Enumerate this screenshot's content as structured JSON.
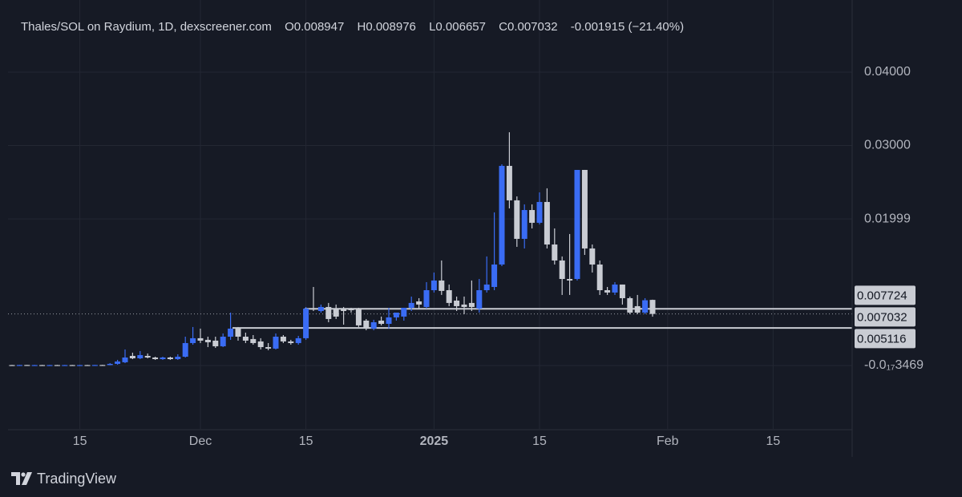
{
  "chart_data": {
    "type": "candlestick",
    "title": "Thales/SOL on Raydium, 1D, dexscreener.com",
    "ohlc_labels": [
      "O0.008947",
      "H0.008976",
      "L0.006657",
      "C0.007032"
    ],
    "change": "-0.001915 (−21.40%)",
    "categories": [
      null,
      null,
      null,
      null,
      null,
      null,
      null,
      null,
      null,
      "15",
      null,
      null,
      null,
      null,
      null,
      null,
      null,
      null,
      null,
      null,
      null,
      null,
      null,
      null,
      null,
      "Dec",
      null,
      null,
      null,
      null,
      null,
      null,
      null,
      null,
      null,
      null,
      null,
      null,
      null,
      "15",
      null,
      null,
      null,
      null,
      null,
      null,
      null,
      null,
      null,
      null,
      null,
      null,
      null,
      null,
      null,
      null,
      "2025",
      null,
      null,
      null,
      null,
      null,
      null,
      null,
      null,
      null,
      null,
      null,
      null,
      null,
      "15",
      null,
      null,
      null,
      null,
      null,
      null,
      null,
      null,
      null,
      null,
      null,
      null,
      null,
      null,
      null,
      null,
      "Feb",
      null,
      null,
      null,
      null,
      null,
      null,
      null,
      null,
      null,
      null,
      null,
      null,
      null,
      "15",
      null,
      null,
      null,
      null,
      null,
      null,
      null,
      null,
      null,
      null
    ],
    "open": [
      6e-05,
      5e-05,
      7e-05,
      5e-05,
      6e-05,
      5e-05,
      6e-05,
      5e-05,
      6e-05,
      5e-05,
      6e-05,
      5e-05,
      7e-05,
      6e-05,
      0.00022,
      0.00044,
      0.00131,
      0.00098,
      0.00131,
      0.00109,
      0.00087,
      0.00109,
      0.00087,
      0.0012,
      0.00306,
      0.00372,
      0.0035,
      0.00339,
      0.00262,
      0.00393,
      0.00503,
      0.00393,
      0.00361,
      0.00328,
      0.00251,
      0.0023,
      0.00393,
      0.00328,
      0.00306,
      0.00372,
      0.00776,
      0.00743,
      0.00798,
      0.00776,
      0.00776,
      0.00776,
      0.00765,
      0.00612,
      0.00503,
      0.00612,
      0.00568,
      0.00656,
      0.00667,
      0.00787,
      0.00874,
      0.00798,
      0.01027,
      0.01159,
      0.01027,
      0.00885,
      0.00831,
      0.00853,
      0.00776,
      0.01027,
      0.01071,
      0.01377,
      0.02722,
      0.02252,
      0.01727,
      0.0212,
      0.01946,
      0.0223,
      0.0165,
      0.01432,
      0.0118,
      0.0118,
      0.02667,
      0.01596,
      0.01377,
      0.01027,
      0.00995,
      0.01104,
      0.00918,
      0.00809,
      0.00721,
      0.008947,
      null,
      null,
      null,
      null,
      null,
      null,
      null,
      null,
      null,
      null,
      null,
      null,
      null,
      null,
      null,
      null,
      null,
      null,
      null,
      null,
      null,
      null,
      null,
      null,
      null,
      null
    ],
    "high": [
      8e-05,
      8e-05,
      8e-05,
      8e-05,
      8e-05,
      8e-05,
      8e-05,
      8e-05,
      8e-05,
      8e-05,
      8e-05,
      8e-05,
      9e-05,
      0.00033,
      0.00077,
      0.00219,
      0.00175,
      0.00197,
      0.00164,
      0.0012,
      0.0012,
      0.0012,
      0.00153,
      0.00393,
      0.00525,
      0.00503,
      0.00393,
      0.00393,
      0.00437,
      0.00721,
      0.00525,
      0.00448,
      0.00415,
      0.00372,
      0.00306,
      0.00437,
      0.00415,
      0.0035,
      0.00404,
      0.00798,
      0.01071,
      0.00831,
      0.00853,
      0.00831,
      0.00798,
      0.00787,
      0.00787,
      0.00634,
      0.00623,
      0.00667,
      0.00787,
      0.00721,
      0.00787,
      0.0094,
      0.00918,
      0.01137,
      0.01268,
      0.01432,
      0.01104,
      0.0094,
      0.0094,
      0.01159,
      0.0118,
      0.01487,
      0.02088,
      0.02743,
      0.03181,
      0.02306,
      0.02197,
      0.02197,
      0.02361,
      0.02416,
      0.01869,
      0.01487,
      0.01793,
      0.02667,
      0.02667,
      0.0165,
      0.01432,
      0.01071,
      0.01137,
      0.01104,
      0.0094,
      0.00962,
      0.00918,
      0.008976,
      null,
      null,
      null,
      null,
      null,
      null,
      null,
      null,
      null,
      null,
      null,
      null,
      null,
      null,
      null,
      null,
      null,
      null,
      null,
      null,
      null,
      null,
      null,
      null,
      null,
      null
    ],
    "low": [
      4e-05,
      4e-05,
      4e-05,
      4e-05,
      4e-05,
      4e-05,
      4e-05,
      4e-05,
      4e-05,
      4e-05,
      4e-05,
      4e-05,
      4e-05,
      4e-05,
      0.00011,
      0.00033,
      0.00087,
      0.00087,
      0.00098,
      0.00077,
      0.00077,
      0.00077,
      0.00077,
      0.00109,
      0.00284,
      0.00306,
      0.00251,
      0.0024,
      0.00251,
      0.0035,
      0.00339,
      0.00306,
      0.00284,
      0.00219,
      0.00208,
      0.00219,
      0.00306,
      0.00284,
      0.00284,
      0.0035,
      0.00743,
      0.00721,
      0.0059,
      0.00634,
      0.00557,
      0.00721,
      0.00525,
      0.00481,
      0.00481,
      0.00547,
      0.00503,
      0.00612,
      0.00612,
      0.00743,
      0.00776,
      0.00776,
      0.00995,
      0.00962,
      0.00809,
      0.00743,
      0.007,
      0.00743,
      0.00721,
      0.00995,
      0.01027,
      0.01355,
      0.02142,
      0.01618,
      0.01596,
      0.01869,
      0.01924,
      0.01596,
      0.01377,
      0.00962,
      0.00962,
      0.01159,
      0.01508,
      0.01268,
      0.00962,
      0.00962,
      0.00962,
      0.00831,
      0.007,
      0.007,
      0.007,
      0.006657,
      null,
      null,
      null,
      null,
      null,
      null,
      null,
      null,
      null,
      null,
      null,
      null,
      null,
      null,
      null,
      null,
      null,
      null,
      null,
      null,
      null,
      null,
      null,
      null,
      null,
      null
    ],
    "close": [
      5e-05,
      7e-05,
      5e-05,
      6e-05,
      5e-05,
      6e-05,
      5e-05,
      6e-05,
      5e-05,
      6e-05,
      5e-05,
      7e-05,
      6e-05,
      0.00022,
      0.00055,
      0.00109,
      0.00098,
      0.00142,
      0.00109,
      0.00087,
      0.00109,
      0.00087,
      0.0012,
      0.00306,
      0.00372,
      0.00339,
      0.00317,
      0.00262,
      0.00393,
      0.00503,
      0.00393,
      0.00339,
      0.00306,
      0.00251,
      0.0023,
      0.00393,
      0.00328,
      0.00306,
      0.00372,
      0.00776,
      0.00765,
      0.00798,
      0.00634,
      0.00667,
      0.00743,
      0.00754,
      0.00547,
      0.00503,
      0.0059,
      0.00568,
      0.00656,
      0.00721,
      0.00787,
      0.00853,
      0.00831,
      0.01027,
      0.01159,
      0.01017,
      0.00853,
      0.00809,
      0.00798,
      0.00798,
      0.01027,
      0.01104,
      0.01377,
      0.02722,
      0.02252,
      0.01727,
      0.0212,
      0.01946,
      0.0223,
      0.0165,
      0.01432,
      0.0118,
      0.01159,
      0.02667,
      0.01596,
      0.01377,
      0.01027,
      0.00995,
      0.01104,
      0.00918,
      0.00721,
      0.00721,
      0.0089,
      0.007032,
      null,
      null,
      null,
      null,
      null,
      null,
      null,
      null,
      null,
      null,
      null,
      null,
      null,
      null,
      null,
      null,
      null,
      null,
      null,
      null,
      null,
      null,
      null,
      null,
      null,
      null
    ],
    "up_color": "#3a6cf4",
    "down_color": "#c9ccd3",
    "ylim": [
      -0.00864,
      0.04984
    ],
    "yticks": [
      {
        "value": 0.04,
        "label": "0.04000"
      },
      {
        "value": 0.03,
        "label": "0.03000"
      },
      0.01999,
      {
        "value": -3.469e-18,
        "label": "-0.0₁₇3469"
      }
    ],
    "price_lines": [
      0.007724,
      0.005116
    ],
    "last_price": 0.007032,
    "grid": true
  },
  "footer": {
    "brand": "TradingView"
  }
}
